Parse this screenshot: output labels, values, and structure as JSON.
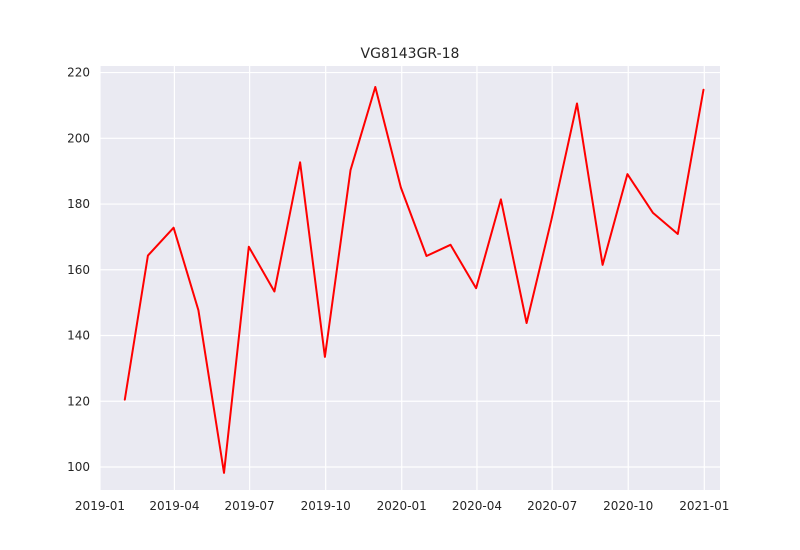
{
  "chart_data": {
    "type": "line",
    "title": "VG8143GR-18",
    "xlabel": "",
    "ylabel": "",
    "x": [
      "2019-01-31",
      "2019-02-28",
      "2019-03-31",
      "2019-04-30",
      "2019-05-31",
      "2019-06-30",
      "2019-07-31",
      "2019-08-31",
      "2019-09-30",
      "2019-10-31",
      "2019-11-30",
      "2019-12-31",
      "2020-01-31",
      "2020-02-29",
      "2020-03-31",
      "2020-04-30",
      "2020-05-31",
      "2020-06-30",
      "2020-07-31",
      "2020-08-31",
      "2020-09-30",
      "2020-10-31",
      "2020-11-30",
      "2020-12-31"
    ],
    "series": [
      {
        "color": "#ff0000",
        "values": [
          120.5,
          164.3,
          172.8,
          147.7,
          98.2,
          167.0,
          153.4,
          192.7,
          133.5,
          190.3,
          215.6,
          185.0,
          164.2,
          167.6,
          154.4,
          181.4,
          143.8,
          175.2,
          210.6,
          161.5,
          189.1,
          177.3,
          170.9,
          214.8
        ]
      }
    ],
    "xlim": [
      "2019-01-01",
      "2021-01-20"
    ],
    "ylim": [
      93,
      222
    ],
    "xticks": [
      "2019-01-01",
      "2019-04-01",
      "2019-07-01",
      "2019-10-01",
      "2020-01-01",
      "2020-04-01",
      "2020-07-01",
      "2020-10-01",
      "2021-01-01"
    ],
    "xtick_labels": [
      "2019-01",
      "2019-04",
      "2019-07",
      "2019-10",
      "2020-01",
      "2020-04",
      "2020-07",
      "2020-10",
      "2021-01"
    ],
    "yticks": [
      100,
      120,
      140,
      160,
      180,
      200,
      220
    ],
    "ytick_labels": [
      "100",
      "120",
      "140",
      "160",
      "180",
      "200",
      "220"
    ],
    "grid": true,
    "legend": "none",
    "background_color": "#eaeaf2",
    "grid_color": "#ffffff"
  }
}
